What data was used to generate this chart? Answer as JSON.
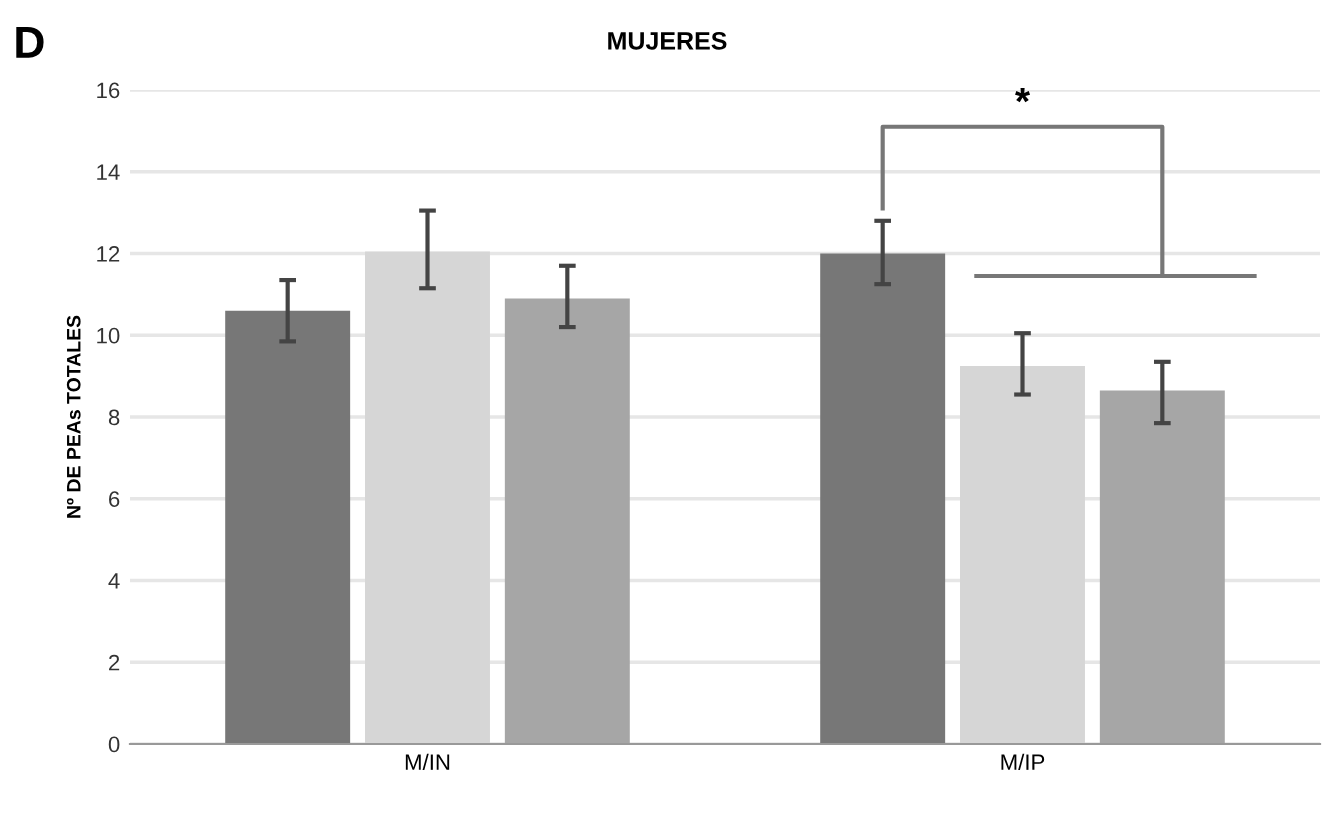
{
  "chart_data": {
    "type": "bar",
    "title": "MUJERES",
    "ylabel": "Nº DE PEAs TOTALES",
    "categories": [
      "M/IN",
      "M/IP"
    ],
    "series": [
      {
        "color": "#777777",
        "values": [
          10.6,
          12.0
        ],
        "errors": [
          [
            9.85,
            11.35
          ],
          [
            11.25,
            12.8
          ]
        ]
      },
      {
        "color": "#d6d6d6",
        "values": [
          12.05,
          9.25
        ],
        "errors": [
          [
            11.15,
            13.05
          ],
          [
            8.55,
            10.05
          ]
        ]
      },
      {
        "color": "#a6a6a6",
        "values": [
          10.9,
          8.65
        ],
        "errors": [
          [
            10.2,
            11.7
          ],
          [
            7.85,
            9.35
          ]
        ]
      }
    ],
    "ylim": [
      0,
      16
    ],
    "yticks": [
      0,
      2,
      4,
      6,
      8,
      10,
      12,
      14,
      16
    ],
    "grid": "y",
    "legend": false,
    "annotations": [
      "D",
      "*"
    ]
  }
}
